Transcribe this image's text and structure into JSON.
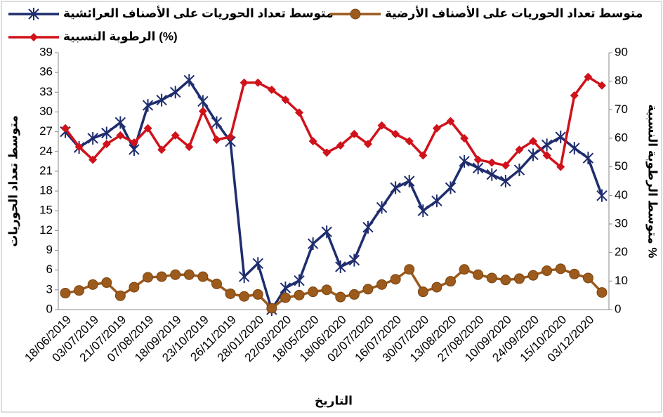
{
  "chart_data": {
    "type": "line",
    "x_label": "التاريخ",
    "y_label": "متوسط تعداد الحوريات",
    "y2_label": "متوسط الرطوبة النسبية %",
    "legend": "top",
    "categories": [
      "18/06/2019",
      null,
      "03/07/2019",
      null,
      "21/07/2019",
      null,
      "07/08/2019",
      null,
      "18/09/2019",
      null,
      "23/10/2019",
      null,
      "26/11/2019",
      null,
      "28/01/2020",
      null,
      "22/03/2020",
      null,
      "18/05/2020",
      null,
      "18/06/2020",
      null,
      "02/07/2020",
      null,
      "16/07/2020",
      null,
      "30/07/2020",
      null,
      "13/08/2020",
      null,
      "27/08/2020",
      null,
      "10/09/2020",
      null,
      "24/09/2020",
      null,
      "15/10/2020",
      null,
      "03/12/2020",
      null
    ],
    "ylim": [
      0,
      39
    ],
    "yticks": [
      0,
      3,
      6,
      9,
      12,
      15,
      18,
      21,
      24,
      27,
      30,
      33,
      36,
      39
    ],
    "y2lim": [
      0,
      90
    ],
    "y2ticks": [
      0,
      10,
      20,
      30,
      40,
      50,
      60,
      70,
      80,
      90
    ],
    "series": [
      {
        "name": "متوسط تعداد الحوريات على الأصناف العرائشية",
        "color": "#1f2d6e",
        "marker": "star",
        "values": [
          27,
          24.6,
          26,
          26.8,
          28.4,
          24.3,
          31,
          31.8,
          33,
          34.8,
          31.6,
          28.4,
          25.5,
          5,
          7,
          0,
          3.3,
          4.4,
          10,
          11.8,
          6.5,
          7.5,
          12.5,
          15.5,
          18.5,
          19.5,
          15,
          16.5,
          18.5,
          22.5,
          21.5,
          20.5,
          19.5,
          21.2,
          23.5,
          25,
          26.2,
          24.5,
          23,
          17.3
        ]
      },
      {
        "name": "متوسط تعداد الحوريات على الأصناف الأرضية",
        "color": "#9c5a1c",
        "marker": "circle",
        "values": [
          2.5,
          2.9,
          3.8,
          4.1,
          2.1,
          3.4,
          4.9,
          5,
          5.3,
          5.3,
          5,
          3.9,
          2.4,
          2,
          2.3,
          0.2,
          1.8,
          2.2,
          2.7,
          3,
          1.9,
          2.3,
          3.1,
          3.8,
          4.6,
          6.1,
          2.7,
          3.4,
          4.3,
          6.1,
          5.3,
          4.8,
          4.5,
          4.7,
          5.2,
          5.9,
          6.2,
          5.4,
          4.8,
          2.6
        ]
      },
      {
        "name": "الرطوبة النسبية (%)",
        "color": "#d0121b",
        "marker": "diamond",
        "axis": "y2",
        "values": [
          63.5,
          57,
          52.5,
          58,
          61,
          58.5,
          63.5,
          56,
          61,
          57,
          69.5,
          59.5,
          60.5,
          79.5,
          79.5,
          77,
          73.5,
          69,
          59,
          55,
          57.5,
          61.5,
          58,
          64.5,
          61.5,
          59,
          54,
          63.5,
          66,
          60,
          52.5,
          51.5,
          50.5,
          56,
          59,
          54,
          50,
          75,
          81.5,
          78.5
        ]
      }
    ]
  }
}
